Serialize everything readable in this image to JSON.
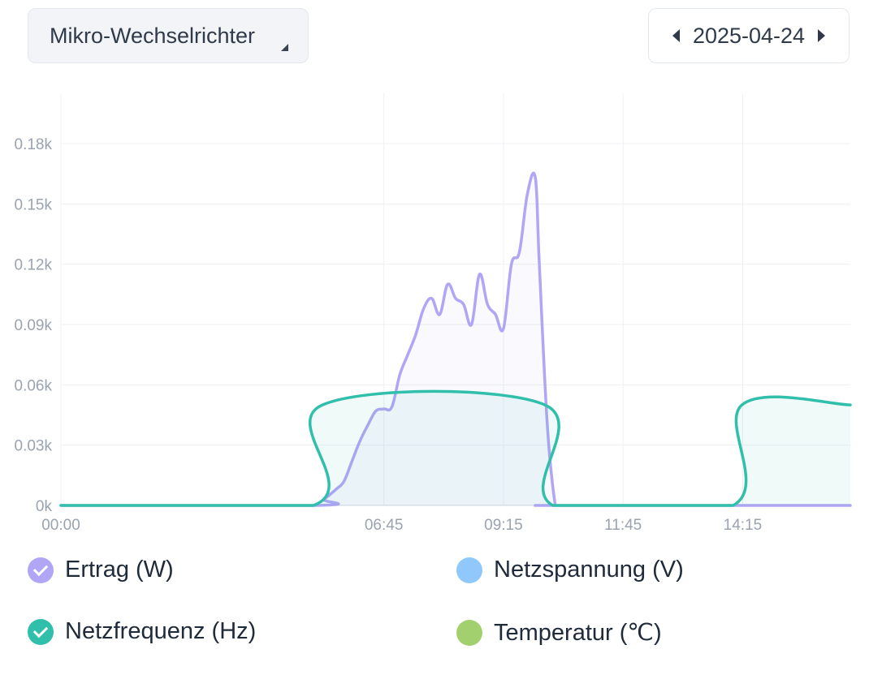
{
  "header": {
    "device": "Mikro-Wechselrichter",
    "date": "2025-04-24"
  },
  "chart_data": {
    "type": "area",
    "x_range": [
      "00:00",
      "16:30"
    ],
    "x_ticks": [
      "00:00",
      "06:45",
      "09:15",
      "11:45",
      "14:15"
    ],
    "y_ticks": [
      "0k",
      "0.03k",
      "0.06k",
      "0.09k",
      "0.12k",
      "0.15k",
      "0.18k"
    ],
    "ylim": [
      0,
      0.18
    ],
    "y_unit": "k",
    "grid": true,
    "legend_position": "bottom",
    "series": [
      {
        "name": "Ertrag (W)",
        "color": "#b1a6f6",
        "enabled": true,
        "x": [
          "00:00",
          "05:20",
          "05:30",
          "05:45",
          "05:55",
          "06:05",
          "06:15",
          "06:25",
          "06:35",
          "06:45",
          "06:55",
          "07:05",
          "07:15",
          "07:25",
          "07:35",
          "07:45",
          "07:55",
          "08:05",
          "08:15",
          "08:25",
          "08:35",
          "08:45",
          "08:55",
          "09:05",
          "09:15",
          "09:25",
          "09:35",
          "09:45",
          "09:55",
          "10:00",
          "10:10",
          "10:20",
          "10:25",
          "16:30"
        ],
        "values": [
          0,
          0,
          0.003,
          0.008,
          0.012,
          0.022,
          0.032,
          0.04,
          0.047,
          0.048,
          0.049,
          0.065,
          0.075,
          0.085,
          0.098,
          0.103,
          0.095,
          0.11,
          0.103,
          0.1,
          0.09,
          0.115,
          0.1,
          0.095,
          0.088,
          0.12,
          0.126,
          0.155,
          0.163,
          0.12,
          0.04,
          0,
          0,
          0
        ]
      },
      {
        "name": "Netzspannung (V)",
        "color": "#90c8fb",
        "enabled": false,
        "x": [],
        "values": []
      },
      {
        "name": "Netzfrequenz (Hz)",
        "color": "#2fbfaa",
        "enabled": true,
        "x": [
          "00:00",
          "05:17",
          "05:28",
          "10:07",
          "10:17",
          "14:03",
          "14:14",
          "16:30"
        ],
        "values": [
          0,
          0,
          0.05,
          0.05,
          0,
          0,
          0.05,
          0.05
        ]
      },
      {
        "name": "Temperatur (℃)",
        "color": "#a3d06e",
        "enabled": false,
        "x": [],
        "values": []
      }
    ]
  }
}
